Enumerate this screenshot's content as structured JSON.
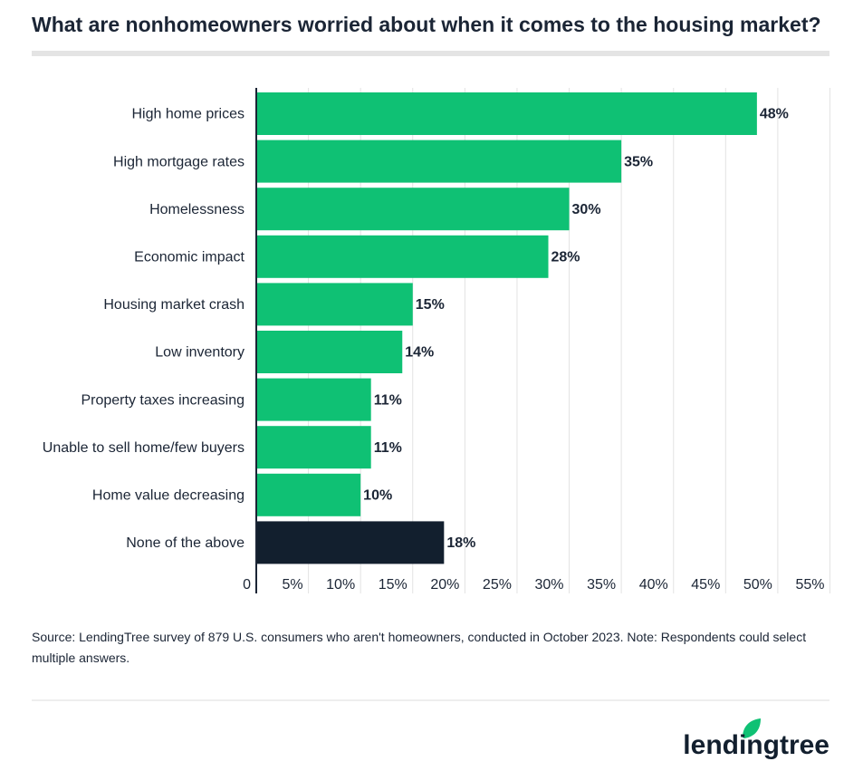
{
  "chart_data": {
    "type": "hbar",
    "title": "What are nonhomeowners worried about when it comes to the housing market?",
    "categories": [
      "High home prices",
      "High mortgage rates",
      "Homelessness",
      "Economic impact",
      "Housing market crash",
      "Low inventory",
      "Property taxes increasing",
      "Unable to sell home/few buyers",
      "Home value decreasing",
      "None of the above"
    ],
    "values": [
      48,
      35,
      30,
      28,
      15,
      14,
      11,
      11,
      10,
      18
    ],
    "value_labels": [
      "48%",
      "35%",
      "30%",
      "28%",
      "15%",
      "14%",
      "11%",
      "11%",
      "10%",
      "18%"
    ],
    "colors": [
      "#0fc174",
      "#0fc174",
      "#0fc174",
      "#0fc174",
      "#0fc174",
      "#0fc174",
      "#0fc174",
      "#0fc174",
      "#0fc174",
      "#121f2e"
    ],
    "xlim": [
      0,
      55
    ],
    "xticks": [
      0,
      {
        "value": 5,
        "label": "5%"
      },
      {
        "value": 10,
        "label": "10%"
      },
      {
        "value": 15,
        "label": "15%"
      },
      {
        "value": 20,
        "label": "20%"
      },
      {
        "value": 25,
        "label": "25%"
      },
      {
        "value": 30,
        "label": "30%"
      },
      {
        "value": 35,
        "label": "35%"
      },
      {
        "value": 40,
        "label": "40%"
      },
      {
        "value": 45,
        "label": "45%"
      },
      {
        "value": 50,
        "label": "50%"
      },
      {
        "value": 55,
        "label": "55%"
      }
    ],
    "grid": true,
    "source": "Source: LendingTree survey of 879 U.S. consumers who aren't homeowners, conducted in October 2023. Note: Respondents could select multiple answers.",
    "brand": "lendingtree"
  }
}
